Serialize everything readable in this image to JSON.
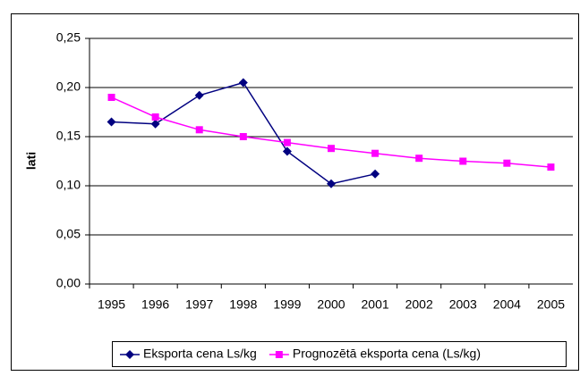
{
  "chart_data": {
    "type": "line",
    "y_label": "lati",
    "categories": [
      "1995",
      "1996",
      "1997",
      "1998",
      "1999",
      "2000",
      "2001",
      "2002",
      "2003",
      "2004",
      "2005"
    ],
    "series": [
      {
        "name": "Eksporta cena Ls/kg",
        "color": "#000080",
        "marker": "diamond",
        "values": [
          0.165,
          0.163,
          0.192,
          0.205,
          0.135,
          0.102,
          0.112,
          null,
          null,
          null,
          null
        ]
      },
      {
        "name": "Prognozētā eksporta cena (Ls/kg)",
        "color": "#ff00ff",
        "marker": "square",
        "values": [
          0.19,
          0.17,
          0.157,
          0.15,
          0.144,
          0.138,
          0.133,
          0.128,
          0.125,
          0.123,
          0.119
        ]
      }
    ],
    "ylim": [
      0,
      0.25
    ],
    "yticks": [
      {
        "value": 0,
        "label": "0,00"
      },
      {
        "value": 0.05,
        "label": "0,05"
      },
      {
        "value": 0.1,
        "label": "0,10"
      },
      {
        "value": 0.15,
        "label": "0,15"
      },
      {
        "value": 0.2,
        "label": "0,20"
      },
      {
        "value": 0.25,
        "label": "0,25"
      }
    ],
    "grid": true,
    "legend": "bottom"
  }
}
